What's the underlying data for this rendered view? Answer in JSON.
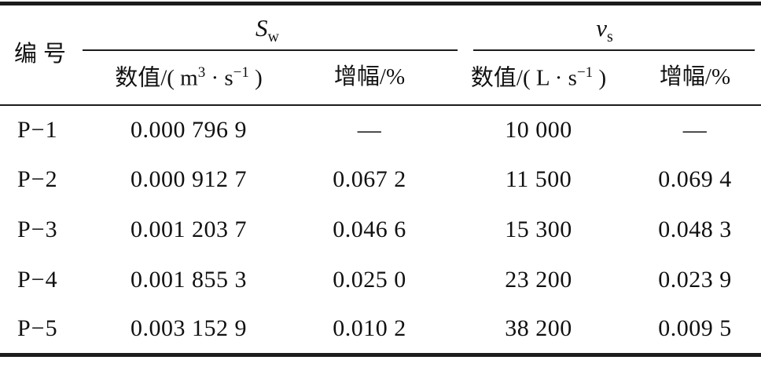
{
  "colors": {
    "rule": "#1c1c1c",
    "text": "#111111",
    "background": "#ffffff"
  },
  "table": {
    "header": {
      "id_label": "编号",
      "sw_group": {
        "symbol": "S",
        "subscript": "w"
      },
      "vs_group": {
        "symbol": "v",
        "subscript": "s"
      },
      "sw_value_unit": {
        "pre": "数值/( m",
        "sup1": "3",
        "mid": " · s",
        "sup2": "−1",
        "post": " )"
      },
      "sw_growth_label": "增幅/%",
      "vs_value_unit": {
        "pre": "数值/( L · s",
        "sup1": "−1",
        "post": " )"
      },
      "vs_growth_label": "增幅/%"
    },
    "rows": [
      {
        "id": "P−1",
        "sw_value": "0.000 796 9",
        "sw_growth": "—",
        "vs_value": "10 000",
        "vs_growth": "—"
      },
      {
        "id": "P−2",
        "sw_value": "0.000 912 7",
        "sw_growth": "0.067 2",
        "vs_value": "11 500",
        "vs_growth": "0.069 4"
      },
      {
        "id": "P−3",
        "sw_value": "0.001 203 7",
        "sw_growth": "0.046 6",
        "vs_value": "15 300",
        "vs_growth": "0.048 3"
      },
      {
        "id": "P−4",
        "sw_value": "0.001 855 3",
        "sw_growth": "0.025 0",
        "vs_value": "23 200",
        "vs_growth": "0.023 9"
      },
      {
        "id": "P−5",
        "sw_value": "0.003 152 9",
        "sw_growth": "0.010 2",
        "vs_value": "38 200",
        "vs_growth": "0.009 5"
      }
    ]
  }
}
